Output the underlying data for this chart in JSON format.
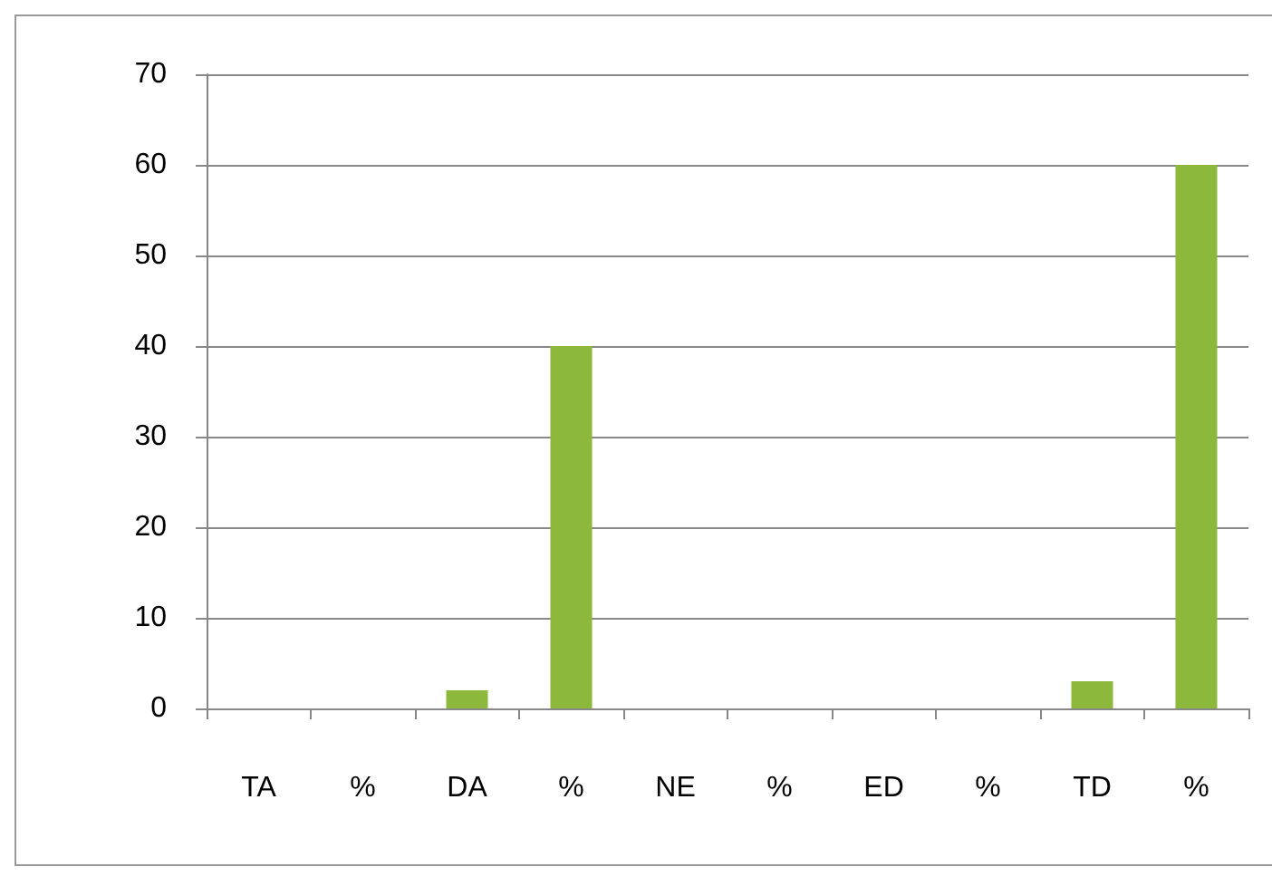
{
  "chart_data": {
    "type": "bar",
    "categories": [
      "TA",
      "%",
      "DA",
      "%",
      "NE",
      "%",
      "ED",
      "%",
      "TD",
      "%"
    ],
    "values": [
      0,
      0,
      2,
      40,
      0,
      0,
      0,
      0,
      3,
      60
    ],
    "color": "#8cb83c",
    "ylim": [
      0,
      70
    ],
    "yticks": [
      0,
      10,
      20,
      30,
      40,
      50,
      60,
      70
    ],
    "grid": "y"
  }
}
